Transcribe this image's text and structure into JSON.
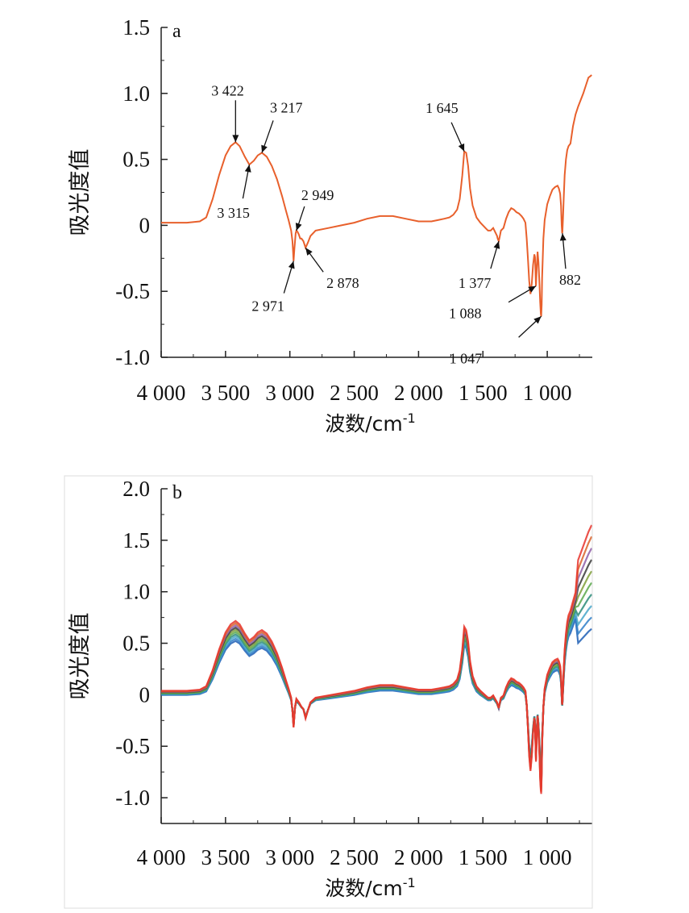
{
  "chart_data": [
    {
      "type": "line",
      "panel_label": "a",
      "xlabel": "波数/cm",
      "xlabel_sup": "-1",
      "ylabel": "吸光度值",
      "xlim": [
        4000,
        650
      ],
      "ylim": [
        -1.0,
        1.5
      ],
      "x_ticks": [
        4000,
        3500,
        3000,
        2500,
        2000,
        1500,
        1000
      ],
      "x_tick_labels": [
        "4 000",
        "3 500",
        "3 000",
        "2 500",
        "2 000",
        "1 500",
        "1 000"
      ],
      "y_ticks": [
        -1.0,
        -0.5,
        0,
        0.5,
        1.0,
        1.5
      ],
      "y_tick_labels": [
        "-1.0",
        "-0.5",
        "0",
        "0.5",
        "1.0",
        "1.5"
      ],
      "grid": false,
      "series": [
        {
          "color": "#e8602c",
          "x": [
            4000,
            3800,
            3700,
            3650,
            3600,
            3550,
            3500,
            3460,
            3422,
            3390,
            3350,
            3315,
            3280,
            3250,
            3217,
            3180,
            3140,
            3100,
            3060,
            3030,
            3010,
            2990,
            2980,
            2975,
            2971,
            2965,
            2955,
            2949,
            2940,
            2930,
            2920,
            2910,
            2895,
            2878,
            2860,
            2840,
            2800,
            2700,
            2600,
            2500,
            2400,
            2300,
            2200,
            2100,
            2000,
            1900,
            1850,
            1800,
            1760,
            1730,
            1700,
            1680,
            1660,
            1645,
            1630,
            1615,
            1600,
            1580,
            1550,
            1520,
            1500,
            1480,
            1460,
            1440,
            1420,
            1400,
            1390,
            1385,
            1377,
            1370,
            1360,
            1340,
            1320,
            1300,
            1280,
            1260,
            1240,
            1220,
            1200,
            1185,
            1170,
            1160,
            1150,
            1140,
            1130,
            1120,
            1110,
            1100,
            1095,
            1088,
            1082,
            1075,
            1068,
            1060,
            1055,
            1050,
            1047,
            1043,
            1040,
            1030,
            1020,
            1000,
            980,
            960,
            940,
            920,
            910,
            900,
            893,
            888,
            884,
            882,
            878,
            872,
            865,
            855,
            845,
            835,
            820,
            800,
            780,
            760,
            740,
            720,
            700,
            680,
            665,
            655
          ],
          "y": [
            0.02,
            0.02,
            0.03,
            0.06,
            0.2,
            0.38,
            0.53,
            0.6,
            0.63,
            0.6,
            0.52,
            0.46,
            0.49,
            0.53,
            0.55,
            0.52,
            0.45,
            0.35,
            0.22,
            0.11,
            0.04,
            -0.04,
            -0.12,
            -0.2,
            -0.27,
            -0.18,
            -0.06,
            -0.04,
            -0.05,
            -0.07,
            -0.1,
            -0.1,
            -0.12,
            -0.17,
            -0.13,
            -0.08,
            -0.04,
            -0.02,
            0.0,
            0.02,
            0.05,
            0.07,
            0.07,
            0.05,
            0.03,
            0.03,
            0.04,
            0.05,
            0.06,
            0.08,
            0.12,
            0.2,
            0.38,
            0.56,
            0.55,
            0.45,
            0.28,
            0.15,
            0.06,
            0.02,
            0.0,
            -0.02,
            -0.04,
            -0.04,
            -0.02,
            -0.06,
            -0.08,
            -0.1,
            -0.12,
            -0.09,
            -0.04,
            -0.02,
            0.05,
            0.1,
            0.13,
            0.12,
            0.1,
            0.09,
            0.07,
            0.05,
            0.02,
            -0.1,
            -0.25,
            -0.42,
            -0.52,
            -0.44,
            -0.3,
            -0.22,
            -0.24,
            -0.46,
            -0.33,
            -0.2,
            -0.28,
            -0.45,
            -0.58,
            -0.67,
            -0.69,
            -0.6,
            -0.4,
            -0.1,
            0.04,
            0.16,
            0.22,
            0.27,
            0.29,
            0.3,
            0.28,
            0.24,
            0.15,
            0.0,
            -0.06,
            -0.05,
            0.05,
            0.2,
            0.38,
            0.5,
            0.57,
            0.6,
            0.62,
            0.75,
            0.84,
            0.9,
            0.95,
            1.0,
            1.06,
            1.12,
            1.13,
            1.14
          ]
        }
      ],
      "annotations": [
        {
          "text": "3 422",
          "x": 3422,
          "y": 0.63
        },
        {
          "text": "3 217",
          "x": 3217,
          "y": 0.55
        },
        {
          "text": "3 315",
          "x": 3315,
          "y": 0.46
        },
        {
          "text": "2 949",
          "x": 2949,
          "y": -0.04
        },
        {
          "text": "2 971",
          "x": 2971,
          "y": -0.27
        },
        {
          "text": "2 878",
          "x": 2878,
          "y": -0.17
        },
        {
          "text": "1 645",
          "x": 1645,
          "y": 0.56
        },
        {
          "text": "1 377",
          "x": 1377,
          "y": -0.12
        },
        {
          "text": "1 088",
          "x": 1088,
          "y": -0.46
        },
        {
          "text": "1 047",
          "x": 1047,
          "y": -0.69
        },
        {
          "text": "882",
          "x": 882,
          "y": -0.06
        }
      ]
    },
    {
      "type": "line",
      "panel_label": "b",
      "xlabel": "波数/cm",
      "xlabel_sup": "-1",
      "ylabel": "吸光度值",
      "xlim": [
        4000,
        650
      ],
      "ylim": [
        -1.25,
        2.0
      ],
      "x_ticks": [
        4000,
        3500,
        3000,
        2500,
        2000,
        1500,
        1000
      ],
      "x_tick_labels": [
        "4 000",
        "3 500",
        "3 000",
        "2 500",
        "2 000",
        "1 500",
        "1 000"
      ],
      "y_ticks": [
        -1.0,
        -0.5,
        0,
        0.5,
        1.0,
        1.5,
        2.0
      ],
      "y_tick_labels": [
        "-1.0",
        "-0.5",
        "0",
        "0.5",
        "1.0",
        "1.5",
        "2.0"
      ],
      "grid": false,
      "series_colors": [
        "#1f5fb5",
        "#2f7fc8",
        "#46a6c9",
        "#2c8c7a",
        "#5aa84c",
        "#7f9f3a",
        "#3a3a3a",
        "#8f5fa8",
        "#d9632b",
        "#e8342c"
      ],
      "series": [
        {
          "x": [
            4000,
            3800,
            3700,
            3650,
            3600,
            3550,
            3500,
            3460,
            3422,
            3390,
            3350,
            3315,
            3280,
            3250,
            3217,
            3180,
            3140,
            3100,
            3060,
            3030,
            3010,
            2990,
            2980,
            2971,
            2960,
            2949,
            2930,
            2910,
            2895,
            2878,
            2860,
            2840,
            2800,
            2700,
            2600,
            2500,
            2400,
            2300,
            2200,
            2100,
            2000,
            1900,
            1850,
            1800,
            1760,
            1730,
            1700,
            1680,
            1660,
            1645,
            1630,
            1615,
            1600,
            1580,
            1550,
            1520,
            1500,
            1480,
            1460,
            1440,
            1420,
            1400,
            1390,
            1385,
            1377,
            1370,
            1360,
            1340,
            1320,
            1300,
            1280,
            1260,
            1240,
            1220,
            1200,
            1185,
            1170,
            1160,
            1150,
            1140,
            1130,
            1120,
            1110,
            1100,
            1095,
            1088,
            1082,
            1075,
            1068,
            1060,
            1055,
            1050,
            1047,
            1043,
            1040,
            1030,
            1020,
            1000,
            980,
            960,
            940,
            920,
            910,
            900,
            893,
            888,
            884,
            882,
            878,
            872,
            865,
            855,
            845,
            835,
            820,
            800,
            780,
            760,
            740,
            720,
            700,
            680,
            665,
            655
          ],
          "y": [
            0.02,
            0.02,
            0.03,
            0.06,
            0.2,
            0.38,
            0.53,
            0.6,
            0.63,
            0.6,
            0.52,
            0.46,
            0.49,
            0.53,
            0.55,
            0.52,
            0.45,
            0.35,
            0.22,
            0.11,
            0.04,
            -0.04,
            -0.15,
            -0.3,
            -0.12,
            -0.05,
            -0.08,
            -0.12,
            -0.14,
            -0.22,
            -0.15,
            -0.08,
            -0.04,
            -0.02,
            0.0,
            0.02,
            0.05,
            0.07,
            0.07,
            0.05,
            0.03,
            0.03,
            0.04,
            0.05,
            0.06,
            0.08,
            0.12,
            0.2,
            0.38,
            0.58,
            0.55,
            0.45,
            0.28,
            0.15,
            0.06,
            0.02,
            0.0,
            -0.02,
            -0.04,
            -0.04,
            -0.02,
            -0.06,
            -0.08,
            -0.1,
            -0.13,
            -0.09,
            -0.04,
            -0.02,
            0.05,
            0.1,
            0.13,
            0.12,
            0.1,
            0.09,
            0.07,
            0.05,
            0.02,
            -0.1,
            -0.3,
            -0.55,
            -0.68,
            -0.55,
            -0.35,
            -0.22,
            -0.28,
            -0.6,
            -0.4,
            -0.2,
            -0.3,
            -0.55,
            -0.75,
            -0.85,
            -0.88,
            -0.7,
            -0.45,
            -0.12,
            0.04,
            0.16,
            0.22,
            0.27,
            0.29,
            0.3,
            0.28,
            0.24,
            0.15,
            0.0,
            -0.1,
            -0.08,
            0.05,
            0.2,
            0.38,
            0.52,
            0.62,
            0.68,
            0.72,
            0.8,
            0.88,
            0.95,
            1.0,
            1.05,
            1.1,
            1.15,
            1.18,
            1.2
          ]
        }
      ]
    }
  ]
}
